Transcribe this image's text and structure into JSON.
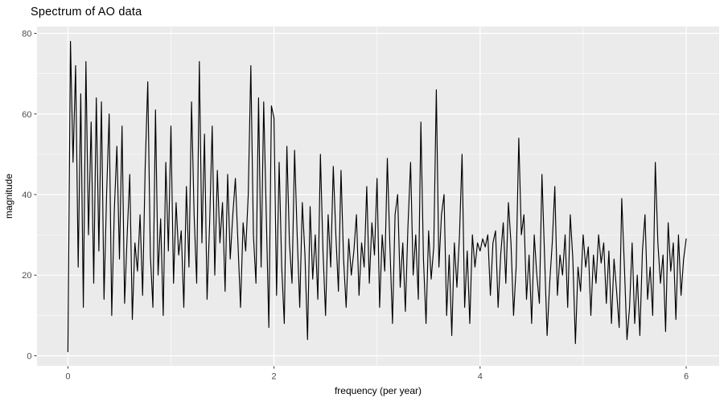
{
  "window": {
    "background": "#ffffff"
  },
  "chart_data": {
    "type": "line",
    "title": "Spectrum of AO data",
    "xlabel": "frequency (per year)",
    "ylabel": "magnitude",
    "legend": "none",
    "grid": "on",
    "panel_background": "#ebebeb",
    "gridline_color": "#ffffff",
    "line_color": "#000000",
    "tick_color": "#333333",
    "tick_label_color": "#4d4d4d",
    "x_ticks": [
      0,
      2,
      4,
      6
    ],
    "x_minor_ticks": [
      1,
      3,
      5
    ],
    "y_ticks": [
      0,
      20,
      40,
      60,
      80
    ],
    "y_minor_ticks": [
      10,
      30,
      50,
      70
    ],
    "xlim": [
      -0.3,
      6.32
    ],
    "ylim": [
      -2.5,
      81.7
    ],
    "x_start": 0,
    "x_step": 0.025,
    "values": [
      1,
      78,
      48,
      72,
      22,
      65,
      12,
      73,
      30,
      58,
      18,
      64,
      26,
      63,
      14,
      40,
      60,
      10,
      36,
      52,
      24,
      57,
      13,
      30,
      45,
      9,
      28,
      21,
      35,
      15,
      47,
      68,
      25,
      12,
      61,
      20,
      34,
      10,
      48,
      26,
      57,
      18,
      38,
      25,
      31,
      12,
      42,
      22,
      63,
      35,
      18,
      73,
      28,
      55,
      14,
      33,
      57,
      20,
      46,
      28,
      38,
      16,
      45,
      24,
      35,
      44,
      28,
      12,
      33,
      26,
      40,
      72,
      30,
      18,
      64,
      22,
      63,
      35,
      7,
      62,
      59,
      15,
      48,
      22,
      8,
      52,
      28,
      18,
      51,
      30,
      12,
      38,
      25,
      4,
      37,
      19,
      30,
      14,
      50,
      26,
      10,
      35,
      22,
      47,
      30,
      16,
      46,
      24,
      12,
      29,
      20,
      26,
      35,
      15,
      28,
      22,
      42,
      18,
      33,
      25,
      44,
      12,
      30,
      21,
      49,
      27,
      8,
      35,
      40,
      17,
      28,
      11,
      32,
      48,
      20,
      30,
      14,
      58,
      24,
      8,
      31,
      19,
      27,
      66,
      22,
      35,
      40,
      10,
      25,
      5,
      28,
      17,
      30,
      50,
      12,
      26,
      8,
      30,
      22,
      28,
      26,
      29,
      27,
      30,
      15,
      28,
      31,
      12,
      25,
      33,
      18,
      38,
      28,
      10,
      22,
      54,
      30,
      35,
      14,
      25,
      8,
      30,
      20,
      13,
      45,
      25,
      5,
      18,
      28,
      42,
      15,
      25,
      20,
      30,
      12,
      35,
      24,
      3,
      22,
      16,
      30,
      22,
      27,
      10,
      25,
      18,
      30,
      23,
      28,
      13,
      26,
      8,
      24,
      16,
      7,
      39,
      22,
      4,
      12,
      28,
      8,
      20,
      5,
      26,
      35,
      14,
      22,
      10,
      48,
      28,
      18,
      25,
      6,
      33,
      21,
      28,
      9,
      30,
      15,
      24,
      29
    ]
  }
}
